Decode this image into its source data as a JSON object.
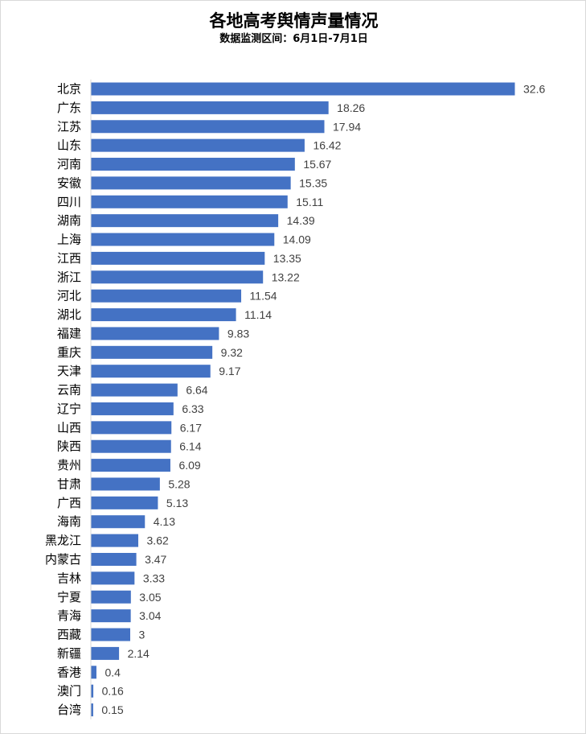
{
  "chart_data": {
    "type": "bar",
    "orientation": "horizontal",
    "title": "各地高考舆情声量情况",
    "subtitle": "数据监测区间：6月1日-7月1日",
    "xlabel": "",
    "ylabel": "",
    "grid": false,
    "legend": "none",
    "bar_color": "#4472c4",
    "categories": [
      "北京",
      "广东",
      "江苏",
      "山东",
      "河南",
      "安徽",
      "四川",
      "湖南",
      "上海",
      "江西",
      "浙江",
      "河北",
      "湖北",
      "福建",
      "重庆",
      "天津",
      "云南",
      "辽宁",
      "山西",
      "陕西",
      "贵州",
      "甘肃",
      "广西",
      "海南",
      "黑龙江",
      "内蒙古",
      "吉林",
      "宁夏",
      "青海",
      "西藏",
      "新疆",
      "香港",
      "澳门",
      "台湾"
    ],
    "values": [
      32.6,
      18.26,
      17.94,
      16.42,
      15.67,
      15.35,
      15.11,
      14.39,
      14.09,
      13.35,
      13.22,
      11.54,
      11.14,
      9.83,
      9.32,
      9.17,
      6.64,
      6.33,
      6.17,
      6.14,
      6.09,
      5.28,
      5.13,
      4.13,
      3.62,
      3.47,
      3.33,
      3.05,
      3.04,
      3,
      2.14,
      0.4,
      0.16,
      0.15
    ],
    "value_labels": [
      "32.6",
      "18.26",
      "17.94",
      "16.42",
      "15.67",
      "15.35",
      "15.11",
      "14.39",
      "14.09",
      "13.35",
      "13.22",
      "11.54",
      "11.14",
      "9.83",
      "9.32",
      "9.17",
      "6.64",
      "6.33",
      "6.17",
      "6.14",
      "6.09",
      "5.28",
      "5.13",
      "4.13",
      "3.62",
      "3.47",
      "3.33",
      "3.05",
      "3.04",
      "3",
      "2.14",
      "0.4",
      "0.16",
      "0.15"
    ]
  }
}
